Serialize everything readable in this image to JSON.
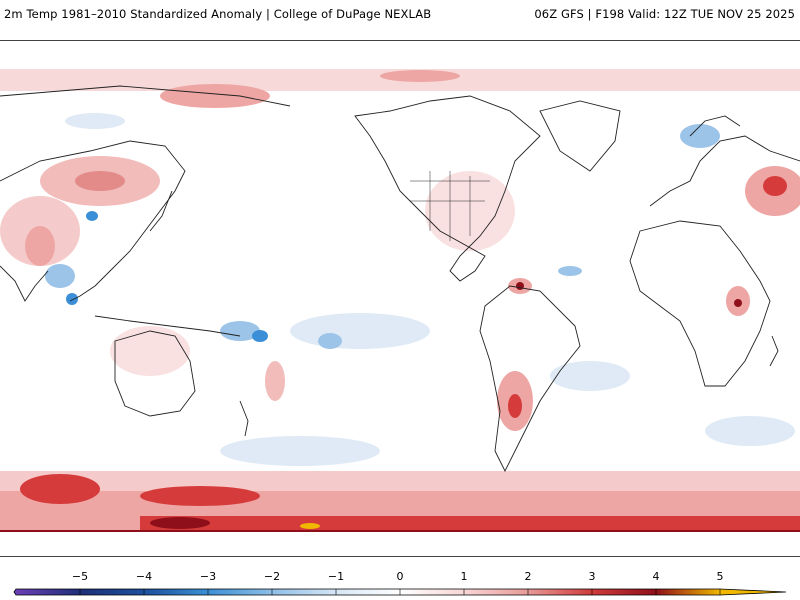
{
  "header": {
    "title_left": "2m Temp 1981–2010 Standardized Anomaly | College of DuPage NEXLAB",
    "title_right": "06Z GFS | F198 Valid: 12Z TUE NOV 25 2025"
  },
  "legend": {
    "tick_labels": [
      "−5",
      "−4",
      "−3",
      "−2",
      "−1",
      "0",
      "1",
      "2",
      "3",
      "4",
      "5"
    ],
    "color_stops": [
      {
        "value": -6,
        "color": "#6a3fb5"
      },
      {
        "value": -5,
        "color": "#1e2f78"
      },
      {
        "value": -4,
        "color": "#1c4f9c"
      },
      {
        "value": -3,
        "color": "#3b8fd6"
      },
      {
        "value": -2,
        "color": "#8fbfe6"
      },
      {
        "value": -1,
        "color": "#d6e6f5"
      },
      {
        "value": 0,
        "color": "#ffffff"
      },
      {
        "value": 1,
        "color": "#f7d6d6"
      },
      {
        "value": 2,
        "color": "#e89a98"
      },
      {
        "value": 3,
        "color": "#cf3b3b"
      },
      {
        "value": 4,
        "color": "#8e0f1a"
      },
      {
        "value": 5,
        "color": "#f0b800"
      }
    ]
  },
  "map": {
    "projection": "equirectangular, centered on 180° (Pacific)",
    "field": "2m temperature standardized anomaly (sigma)",
    "palette": {
      "warm_light": "#f9dede",
      "warm_mid": "#eea6a4",
      "warm_strong": "#d63b3b",
      "warm_extreme": "#8e0f1a",
      "cold_light": "#dfeaf6",
      "cold_mid": "#9cc4e8",
      "cold_strong": "#3b8fd6",
      "coast": "#222222"
    }
  }
}
